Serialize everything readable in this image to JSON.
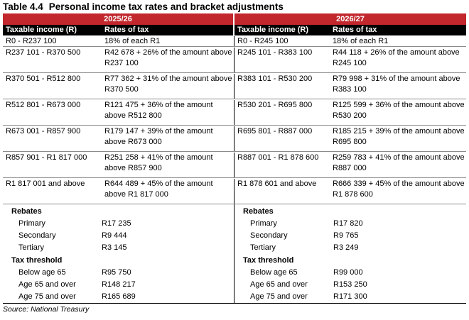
{
  "title": {
    "number": "Table 4.4",
    "text": "Personal income tax rates and bracket adjustments"
  },
  "years": [
    "2025/26",
    "2026/27"
  ],
  "headers": {
    "income": "Taxable income (R)",
    "rates": "Rates of tax"
  },
  "brackets": [
    {
      "y1_income": "R0 - R237 100",
      "y1_rate": "18% of each R1",
      "y2_income": "R0 - R245 100",
      "y2_rate": "18% of each R1"
    },
    {
      "y1_income": "R237 101 - R370 500",
      "y1_rate": "R42 678 + 26% of the amount above R237 100",
      "y2_income": "R245 101 - R383 100",
      "y2_rate": "R44 118 + 26% of the amount above R245 100"
    },
    {
      "y1_income": "R370 501 - R512 800",
      "y1_rate": "R77 362 + 31% of the amount above R370 500",
      "y2_income": "R383 101 - R530 200",
      "y2_rate": "R79 998 + 31% of the amount above R383 100"
    },
    {
      "y1_income": "R512 801 - R673 000",
      "y1_rate": "R121 475 + 36% of the amount above R512 800",
      "y2_income": "R530 201 - R695 800",
      "y2_rate": "R125 599 + 36% of the amount above R530 200"
    },
    {
      "y1_income": "R673 001 - R857 900",
      "y1_rate": "R179 147 + 39% of the amount above R673 000",
      "y2_income": "R695 801 - R887 000",
      "y2_rate": "R185 215 + 39% of the amount above R695 800"
    },
    {
      "y1_income": "R857 901 - R1 817 000",
      "y1_rate": "R251 258 + 41% of the amount above R857 900",
      "y2_income": "R887 001 - R1 878 600",
      "y2_rate": "R259 783 + 41% of the amount above R887 000"
    },
    {
      "y1_income": "R1 817 001 and above",
      "y1_rate": "R644 489 + 45% of the amount above R1 817 000",
      "y2_income": "R1 878 601 and above",
      "y2_rate": "R666 339 + 45% of the amount above R1 878 600"
    }
  ],
  "rebates_label": "Rebates",
  "threshold_label": "Tax threshold",
  "y1": {
    "rebates": [
      {
        "label": "Primary",
        "value": "R17 235"
      },
      {
        "label": "Secondary",
        "value": "R9 444"
      },
      {
        "label": "Tertiary",
        "value": "R3 145"
      }
    ],
    "thresholds": [
      {
        "label": "Below age 65",
        "value": "R95 750"
      },
      {
        "label": "Age 65 and over",
        "value": "R148 217"
      },
      {
        "label": "Age 75 and over",
        "value": "R165 689"
      }
    ]
  },
  "y2": {
    "rebates": [
      {
        "label": "Primary",
        "value": "R17 820"
      },
      {
        "label": "Secondary",
        "value": "R9 765"
      },
      {
        "label": "Tertiary",
        "value": "R3 249"
      }
    ],
    "thresholds": [
      {
        "label": "Below age 65",
        "value": "R99 000"
      },
      {
        "label": "Age 65 and over",
        "value": "R153 250"
      },
      {
        "label": "Age 75 and over",
        "value": "R171 300"
      }
    ]
  },
  "source": "Source: National Treasury"
}
